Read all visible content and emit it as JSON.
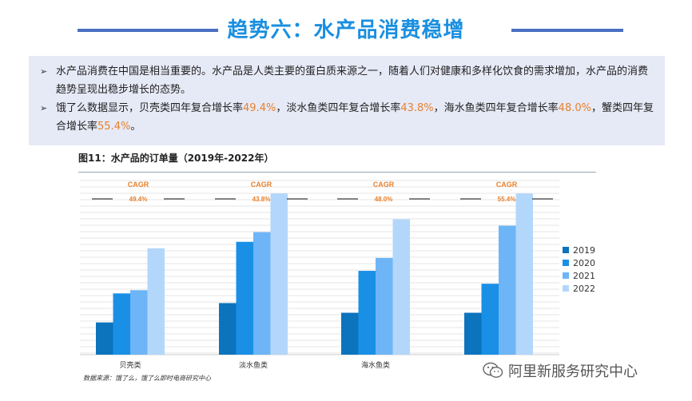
{
  "header": {
    "title": "趋势六：水产品消费稳增"
  },
  "summary": {
    "bullet1": "水产品消费在中国是相当重要的。水产品是人类主要的蛋白质来源之一，随着人们对健康和多样化饮食的需求增加，水产品的消费趋势呈现出稳步增长的态势。",
    "bullet2_parts": [
      "饿了么数据显示，贝壳类四年复合增长率",
      "49.4%",
      "，淡水鱼类四年复合增长率",
      "43.8%",
      "，海水鱼类四年复合增长率",
      "48.0%",
      "，蟹类四年复合增长率",
      "55.4%",
      "。"
    ]
  },
  "figure": {
    "title": "图11：水产品的订单量（2019年-2022年）",
    "source": "数据来源：饿了么，饿了么即时电商研究中心"
  },
  "brand": {
    "name": "阿里新服务研究中心",
    "icon": "wechat-icon"
  },
  "colors": {
    "title": "#1a8fe0",
    "highlight": "#e8812d",
    "s2019": "#0c73bd",
    "s2020": "#1990e6",
    "s2021": "#6db5f6",
    "s2022": "#b3d7fb"
  },
  "chart_data": {
    "type": "bar",
    "title": "图11：水产品的订单量（2019年-2022年）",
    "categories": [
      "贝壳类",
      "淡水鱼类",
      "海水鱼类",
      ""
    ],
    "series": [
      {
        "name": "2019",
        "values": [
          1.0,
          1.6,
          1.3,
          1.3
        ]
      },
      {
        "name": "2020",
        "values": [
          1.9,
          3.5,
          2.6,
          2.2
        ]
      },
      {
        "name": "2021",
        "values": [
          2.0,
          3.8,
          3.0,
          4.0
        ]
      },
      {
        "name": "2022",
        "values": [
          3.3,
          5.0,
          4.2,
          5.0
        ]
      }
    ],
    "cagr_label": "CAGR",
    "cagr": [
      "49.4%",
      "43.8%",
      "48.0%",
      "55.4%"
    ],
    "ylim": [
      0,
      5.5
    ],
    "xlabel": "",
    "ylabel": "",
    "grid": true,
    "legend": [
      "2019",
      "2020",
      "2021",
      "2022"
    ],
    "legend_position": "right"
  }
}
